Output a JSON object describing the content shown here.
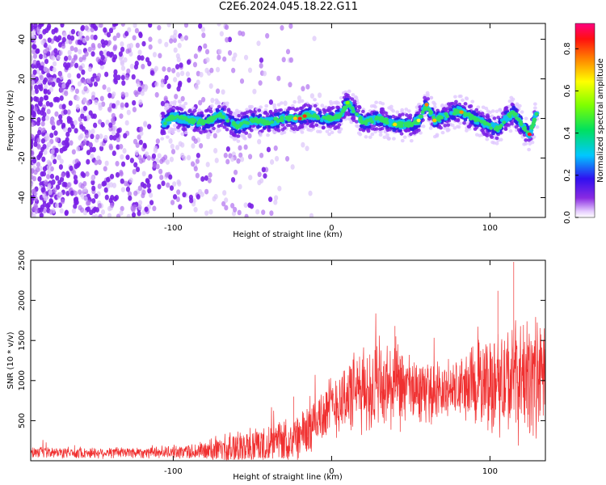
{
  "title": "C2E6.2024.045.18.22.G11",
  "colors": {
    "snr_line": "#f03030",
    "spectrogram_noise": "#8a2be2",
    "frame": "#000000"
  },
  "chart_data": [
    {
      "type": "heatmap",
      "title": "",
      "xlabel": "Height of straight line (km)",
      "ylabel": "Frequency (Hz)",
      "xlim": [
        -190,
        135
      ],
      "ylim": [
        -50,
        48
      ],
      "xticks": [
        -100,
        0,
        100
      ],
      "yticks": [
        -40,
        -20,
        0,
        20,
        40
      ],
      "grid": false,
      "colorbar": {
        "label": "Normalized spectral amplitude",
        "range": [
          0,
          0.92
        ],
        "ticks": [
          "0.0",
          "0.2",
          "0.4",
          "0.6",
          "0.8"
        ],
        "colormap": "rainbow (violet to red/magenta)"
      },
      "signal_track": {
        "x": [
          -107,
          -100,
          -90,
          -80,
          -70,
          -60,
          -50,
          -40,
          -30,
          -20,
          -15,
          -10,
          0,
          5,
          10,
          20,
          30,
          40,
          50,
          55,
          60,
          65,
          70,
          80,
          90,
          100,
          105,
          110,
          115,
          120,
          125,
          130
        ],
        "y": [
          -3,
          1,
          -1,
          -2,
          2,
          -4,
          -1,
          -2,
          0,
          0,
          2,
          1,
          0,
          1,
          8,
          -2,
          0,
          -3,
          -3,
          -1,
          7,
          -1,
          1,
          4,
          0,
          -4,
          -5,
          0,
          3,
          -3,
          -8,
          4
        ]
      },
      "noise_region_km": [
        -190,
        -30
      ]
    },
    {
      "type": "line",
      "title": "",
      "xlabel": "Height of straight line (km)",
      "ylabel": "SNR (10 * v/v)",
      "xlim": [
        -190,
        135
      ],
      "ylim": [
        0,
        2500
      ],
      "xticks": [
        -100,
        0,
        100
      ],
      "yticks": [
        500,
        1000,
        1500,
        2000,
        2500
      ],
      "grid": false,
      "series": [
        {
          "envelope_x": [
            -190,
            -150,
            -100,
            -80,
            -70,
            -60,
            -50,
            -40,
            -30,
            -20,
            -10,
            0,
            10,
            20,
            30,
            40,
            50,
            60,
            70,
            80,
            90,
            100,
            110,
            120,
            130
          ],
          "baseline": [
            100,
            100,
            110,
            120,
            140,
            160,
            190,
            210,
            250,
            300,
            500,
            680,
            820,
            880,
            900,
            920,
            870,
            860,
            860,
            900,
            950,
            970,
            1000,
            1020,
            1050
          ],
          "amplitude": [
            80,
            80,
            90,
            140,
            220,
            260,
            280,
            260,
            300,
            380,
            400,
            450,
            550,
            600,
            700,
            650,
            500,
            420,
            420,
            450,
            600,
            700,
            800,
            850,
            850
          ]
        }
      ]
    }
  ]
}
